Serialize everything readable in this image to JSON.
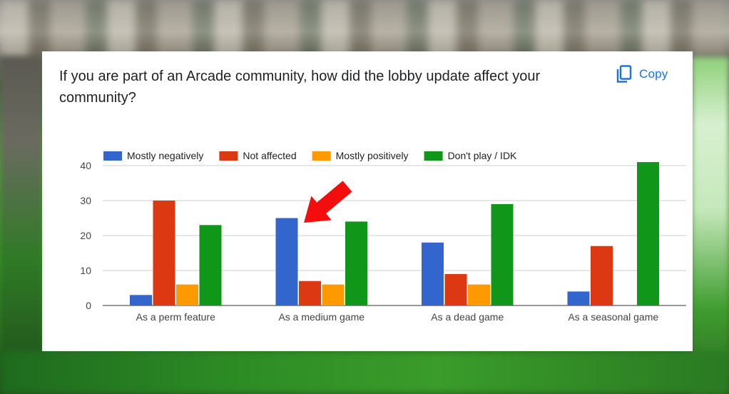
{
  "card": {
    "question": "If you are part of an Arcade community, how did the lobby update affect your community?",
    "copy_label": "Copy",
    "copy_icon": "copy-icon"
  },
  "annotation": {
    "type": "red-arrow",
    "points_to": "Mostly negatively — As a medium game",
    "color": "#f40d0d"
  },
  "chart_data": {
    "type": "bar",
    "title": "",
    "xlabel": "",
    "ylabel": "",
    "categories": [
      "As a perm feature",
      "As a medium game",
      "As a dead game",
      "As a seasonal game"
    ],
    "series": [
      {
        "name": "Mostly negatively",
        "color": "#3366cc",
        "values": [
          3,
          25,
          18,
          4
        ]
      },
      {
        "name": "Not affected",
        "color": "#dc3912",
        "values": [
          30,
          7,
          9,
          17
        ]
      },
      {
        "name": "Mostly positively",
        "color": "#ff9900",
        "values": [
          6,
          6,
          6,
          0
        ]
      },
      {
        "name": "Don't play / IDK",
        "color": "#109618",
        "values": [
          23,
          24,
          29,
          41
        ]
      }
    ],
    "ylim": [
      0,
      40
    ],
    "yticks": [
      0,
      10,
      20,
      30,
      40
    ],
    "grid": true,
    "legend_position": "top-left"
  }
}
